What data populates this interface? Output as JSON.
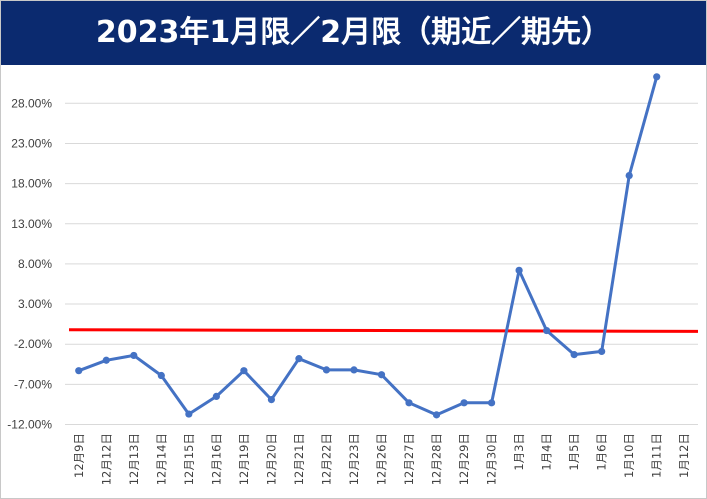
{
  "title": "2023年1月限／2月限（期近／期先）",
  "colors": {
    "title_bg": "#0b2a6f",
    "title_fg": "#ffffff",
    "series": "#4472c4",
    "reference_line": "#ff0000",
    "grid": "#d9d9d9"
  },
  "chart_data": {
    "type": "line",
    "title": "2023年1月限／2月限（期近／期先）",
    "xlabel": "",
    "ylabel": "",
    "categories": [
      "12月9日",
      "12月12日",
      "12月13日",
      "12月14日",
      "12月15日",
      "12月16日",
      "12月19日",
      "12月20日",
      "12月21日",
      "12月22日",
      "12月23日",
      "12月26日",
      "12月27日",
      "12月28日",
      "12月29日",
      "12月30日",
      "1月3日",
      "1月4日",
      "1月5日",
      "1月6日",
      "1月10日",
      "1月11日",
      "1月12日"
    ],
    "y_tick_labels": [
      "-12.00%",
      "-7.00%",
      "-2.00%",
      "3.00%",
      "8.00%",
      "13.00%",
      "18.00%",
      "23.00%",
      "28.00%"
    ],
    "ylim": [
      -12,
      31
    ],
    "y_unit": "%",
    "series": [
      {
        "values": [
          -5.3,
          -4.0,
          -3.4,
          -5.9,
          -10.7,
          -8.5,
          -5.3,
          -8.9,
          -3.8,
          -5.2,
          -5.2,
          -5.8,
          -9.3,
          -10.8,
          -9.3,
          -9.3,
          7.2,
          -0.3,
          -3.3,
          -2.9,
          19.0,
          31.3,
          null
        ]
      }
    ],
    "reference_line": {
      "y_start": -0.2,
      "y_end": -0.4
    },
    "grid": true,
    "legend": "none"
  }
}
